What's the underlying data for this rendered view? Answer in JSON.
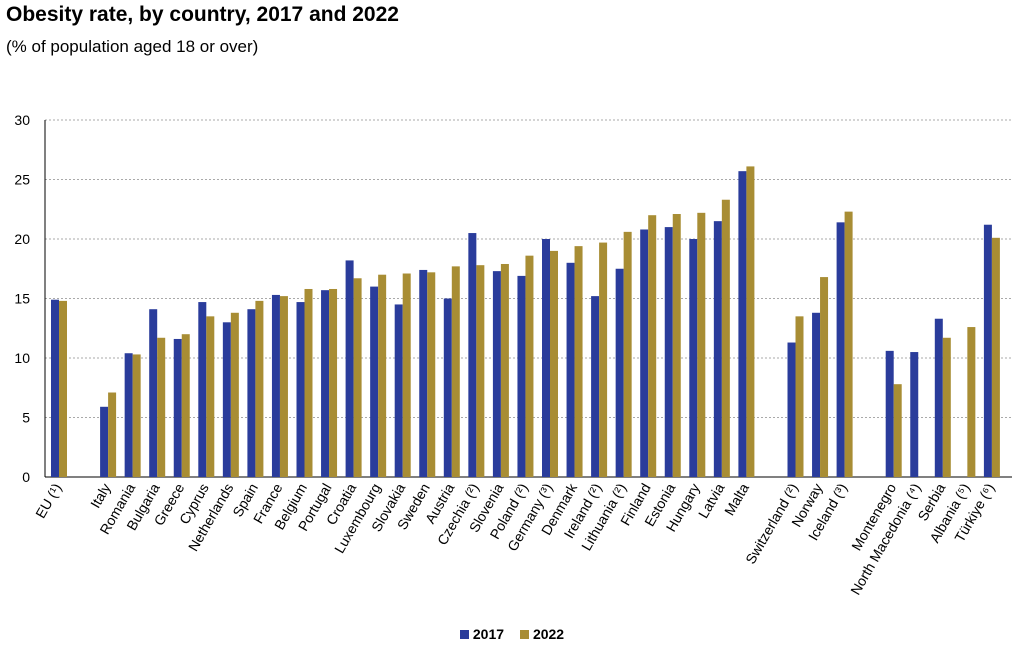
{
  "colors": {
    "s2017": "#2a3c9b",
    "s2022": "#a88d34",
    "grid": "#a9a9a9",
    "axis": "#000000"
  },
  "chart_data": {
    "type": "bar",
    "title": "Obesity rate, by country, 2017 and 2022",
    "subtitle": "(% of population  aged 18 or over)",
    "ylim": [
      0,
      30
    ],
    "yticks": [
      0,
      5,
      10,
      15,
      20,
      25,
      30
    ],
    "grid": true,
    "legend_position": "bottom-center",
    "categories": [
      "EU (¹)",
      "",
      "Italy",
      "Romania",
      "Bulgaria",
      "Greece",
      "Cyprus",
      "Netherlands",
      "Spain",
      "France",
      "Belgium",
      "Portugal",
      "Croatia",
      "Luxembourg",
      "Slovakia",
      "Sweden",
      "Austria",
      "Czechia (²)",
      "Slovenia",
      "Poland (²)",
      "Germany (³)",
      "Denmark",
      "Ireland (²)",
      "Lithuania (²)",
      "Finland",
      "Estonia",
      "Hungary",
      "Latvia",
      "Malta",
      "",
      "Switzerland (²)",
      "Norway",
      "Iceland (³)",
      "",
      "Montenegro",
      "North Macedonia (⁴)",
      "Serbia",
      "Albania (⁵)",
      "Türkiye (⁶)"
    ],
    "series": [
      {
        "name": "2017",
        "values": [
          14.9,
          null,
          5.9,
          10.4,
          14.1,
          11.6,
          14.7,
          13.0,
          14.1,
          15.3,
          14.7,
          15.7,
          18.2,
          16.0,
          14.5,
          17.4,
          15.0,
          20.5,
          17.3,
          16.9,
          20.0,
          18.0,
          15.2,
          17.5,
          20.8,
          21.0,
          20.0,
          21.5,
          25.7,
          null,
          11.3,
          13.8,
          21.4,
          null,
          10.6,
          10.5,
          13.3,
          null,
          21.2
        ]
      },
      {
        "name": "2022",
        "values": [
          14.8,
          null,
          7.1,
          10.3,
          11.7,
          12.0,
          13.5,
          13.8,
          14.8,
          15.2,
          15.8,
          15.8,
          16.7,
          17.0,
          17.1,
          17.2,
          17.7,
          17.8,
          17.9,
          18.6,
          19.0,
          19.4,
          19.7,
          20.6,
          22.0,
          22.1,
          22.2,
          23.3,
          26.1,
          null,
          13.5,
          16.8,
          22.3,
          null,
          7.8,
          null,
          11.7,
          12.6,
          20.1
        ]
      }
    ]
  }
}
